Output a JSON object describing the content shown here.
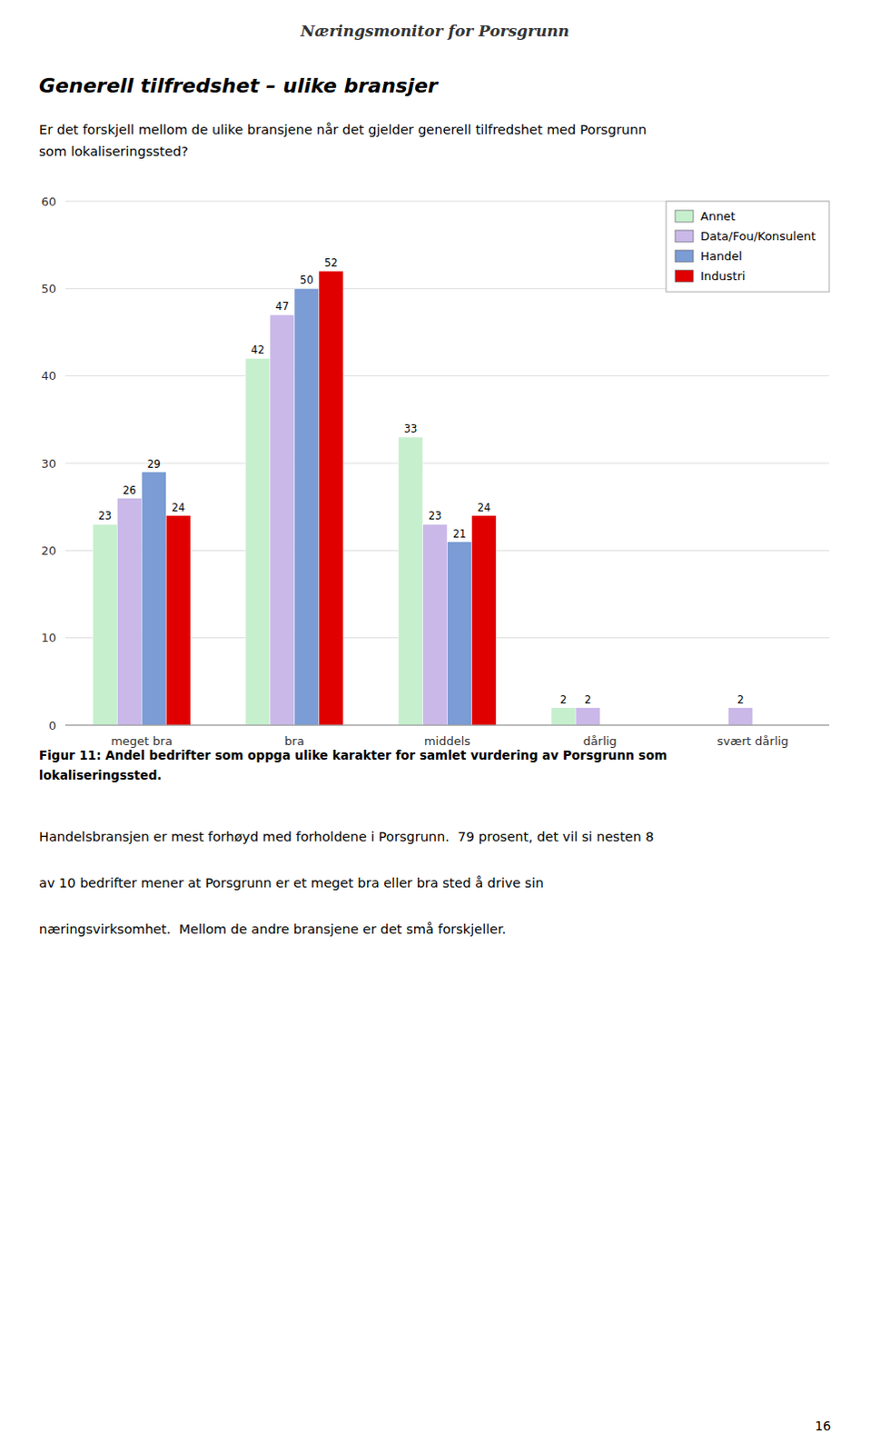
{
  "header": "Næringsmonitor for Porsgrunn",
  "chart_data": {
    "type": "bar",
    "title": "Generell tilfredshet – ulike bransjer",
    "subtitle": [
      "Er det forskjell mellom de ulike bransjene når det gjelder generell tilfredshet med Porsgrunn",
      "som lokaliseringssted?"
    ],
    "categories": [
      "meget bra",
      "bra",
      "middels",
      "dårlig",
      "svært dårlig"
    ],
    "series": [
      {
        "name": "Annet",
        "color": "#c6efce",
        "values": [
          23,
          42,
          33,
          2,
          0
        ]
      },
      {
        "name": "Data/Fou/Konsulent",
        "color": "#c9b8e8",
        "values": [
          26,
          47,
          23,
          2,
          2
        ]
      },
      {
        "name": "Handel",
        "color": "#7b9cd4",
        "values": [
          29,
          50,
          21,
          0,
          0
        ]
      },
      {
        "name": "Industri",
        "color": "#e00000",
        "values": [
          24,
          52,
          24,
          0,
          0
        ]
      }
    ],
    "ylim": [
      0,
      60
    ],
    "yticks": [
      0,
      10,
      20,
      30,
      40,
      50,
      60
    ],
    "grid": true,
    "legend": "upper-right",
    "data_labels": true
  },
  "caption": [
    "Figur 11: Andel bedrifter som oppga ulike karakter for samlet vurdering av Porsgrunn som",
    "lokaliseringssted."
  ],
  "body": [
    "Handelsbransjen er mest forhøyd med forholdene i Porsgrunn.  79 prosent, det vil si nesten 8",
    "av 10 bedrifter mener at Porsgrunn er et meget bra eller bra sted å drive sin",
    "næringsvirksomhet.  Mellom de andre bransjene er det små forskjeller."
  ],
  "page_number": "16"
}
